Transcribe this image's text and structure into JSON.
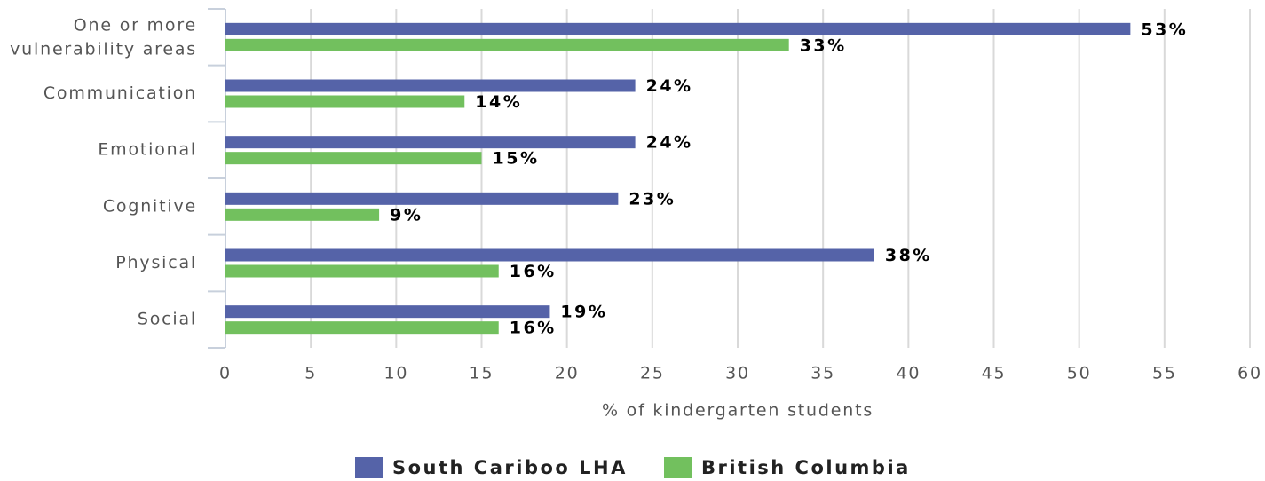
{
  "chart_data": {
    "type": "bar",
    "orientation": "horizontal",
    "categories": [
      "One or more vulnerability areas",
      "Communication",
      "Emotional",
      "Cognitive",
      "Physical",
      "Social"
    ],
    "series": [
      {
        "name": "South Cariboo LHA",
        "color": "#5563a8",
        "values": [
          53,
          24,
          24,
          23,
          38,
          19
        ],
        "value_labels": [
          "53%",
          "24%",
          "24%",
          "23%",
          "38%",
          "19%"
        ]
      },
      {
        "name": "British Columbia",
        "color": "#72c05e",
        "values": [
          33,
          14,
          15,
          9,
          16,
          16
        ],
        "value_labels": [
          "33%",
          "14%",
          "15%",
          "9%",
          "16%",
          "16%"
        ]
      }
    ],
    "x_label": "% of kindergarten students",
    "xlim": [
      0,
      60
    ],
    "xticks": [
      0,
      5,
      10,
      15,
      20,
      25,
      30,
      35,
      40,
      45,
      50,
      55,
      60
    ],
    "grid": true,
    "legend": "bottom"
  }
}
